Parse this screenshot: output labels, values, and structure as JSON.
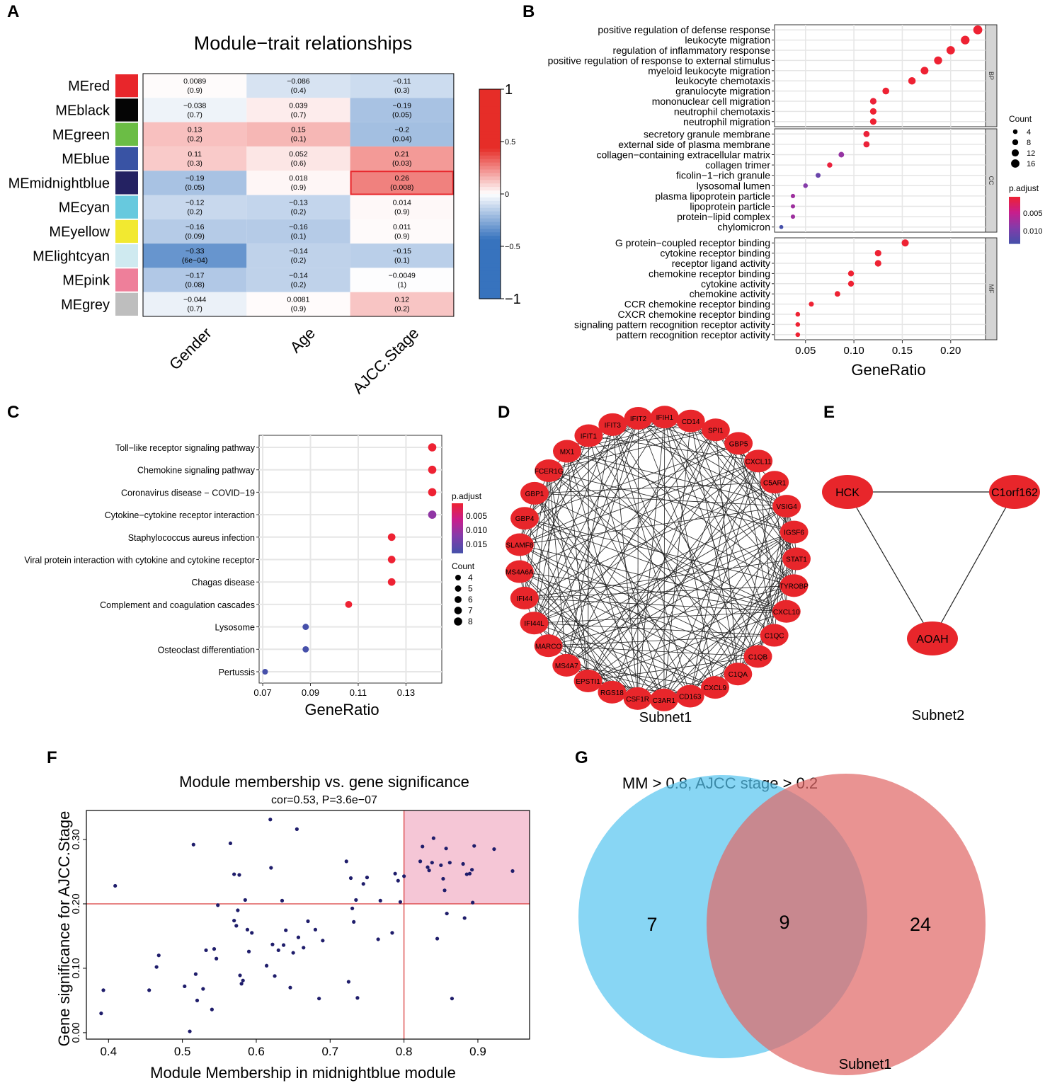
{
  "figure": {
    "panel_labels": [
      "A",
      "B",
      "C",
      "D",
      "E",
      "F",
      "G"
    ]
  },
  "chart_data": [
    {
      "panel": "A",
      "type": "heatmap",
      "title": "Module−trait relationships",
      "rows": [
        "MEred",
        "MEblack",
        "MEgreen",
        "MEblue",
        "MEmidnightblue",
        "MEcyan",
        "MEyellow",
        "MElightcyan",
        "MEpink",
        "MEgrey"
      ],
      "row_colors": [
        "#e8262b",
        "#050505",
        "#6bbd45",
        "#3953a4",
        "#242262",
        "#67c9de",
        "#f2e930",
        "#cfeaf0",
        "#ee7f9a",
        "#bebebe"
      ],
      "columns": [
        "Gender",
        "Age",
        "AJCC.Stage"
      ],
      "values": [
        [
          0.0089,
          -0.086,
          -0.11
        ],
        [
          -0.038,
          0.039,
          -0.19
        ],
        [
          0.13,
          0.15,
          -0.2
        ],
        [
          0.11,
          0.052,
          0.21
        ],
        [
          -0.19,
          0.018,
          0.26
        ],
        [
          -0.12,
          -0.13,
          0.014
        ],
        [
          -0.16,
          -0.16,
          0.011
        ],
        [
          -0.33,
          -0.14,
          -0.15
        ],
        [
          -0.17,
          -0.14,
          -0.0049
        ],
        [
          -0.044,
          0.0081,
          0.12
        ]
      ],
      "cell_labels": [
        [
          "0.0089",
          "−0.086",
          "−0.11"
        ],
        [
          "−0.038",
          "0.039",
          "−0.19"
        ],
        [
          "0.13",
          "0.15",
          "−0.2"
        ],
        [
          "0.11",
          "0.052",
          "0.21"
        ],
        [
          "−0.19",
          "0.018",
          "0.26"
        ],
        [
          "−0.12",
          "−0.13",
          "0.014"
        ],
        [
          "−0.16",
          "−0.16",
          "0.011"
        ],
        [
          "−0.33",
          "−0.14",
          "−0.15"
        ],
        [
          "−0.17",
          "−0.14",
          "−0.0049"
        ],
        [
          "−0.044",
          "0.0081",
          "0.12"
        ]
      ],
      "pvalues": [
        [
          "(0.9)",
          "(0.4)",
          "(0.3)"
        ],
        [
          "(0.7)",
          "(0.7)",
          "(0.05)"
        ],
        [
          "(0.2)",
          "(0.1)",
          "(0.04)"
        ],
        [
          "(0.3)",
          "(0.6)",
          "(0.03)"
        ],
        [
          "(0.05)",
          "(0.9)",
          "(0.008)"
        ],
        [
          "(0.2)",
          "(0.2)",
          "(0.9)"
        ],
        [
          "(0.09)",
          "(0.1)",
          "(0.9)"
        ],
        [
          "(6e−04)",
          "(0.2)",
          "(0.1)"
        ],
        [
          "(0.08)",
          "(0.2)",
          "(1)"
        ],
        [
          "(0.7)",
          "(0.9)",
          "(0.2)"
        ]
      ],
      "highlight_cell": {
        "row": "MEmidnightblue",
        "column": "AJCC.Stage"
      },
      "colorbar": {
        "range": [
          -1,
          1
        ],
        "ticks": [
          "1",
          "0.5",
          "0",
          "−0.5",
          "−1"
        ],
        "tick_values": [
          1,
          0.5,
          0,
          -0.5,
          -1
        ]
      }
    },
    {
      "panel": "B",
      "type": "scatter",
      "subtype": "dotplot",
      "xlabel": "GeneRatio",
      "xlim": [
        0.018,
        0.236
      ],
      "xticks": [
        0.05,
        0.1,
        0.15,
        0.2
      ],
      "xtick_labels": [
        "0.05",
        "0.10",
        "0.15",
        "0.20"
      ],
      "facets": [
        {
          "name": "BP",
          "terms": [
            {
              "term": "positive regulation of defense response",
              "x": 0.228,
              "count": 18,
              "padj": 0.0005
            },
            {
              "term": "leukocyte migration",
              "x": 0.215,
              "count": 17,
              "padj": 0.0005
            },
            {
              "term": "regulation of inflammatory response",
              "x": 0.2,
              "count": 16,
              "padj": 0.0005
            },
            {
              "term": "positive regulation of response to external stimulus",
              "x": 0.187,
              "count": 15,
              "padj": 0.0005
            },
            {
              "term": "myeloid leukocyte migration",
              "x": 0.173,
              "count": 14,
              "padj": 0.0005
            },
            {
              "term": "leukocyte chemotaxis",
              "x": 0.16,
              "count": 13,
              "padj": 0.0005
            },
            {
              "term": "granulocyte migration",
              "x": 0.133,
              "count": 11,
              "padj": 0.0005
            },
            {
              "term": "mononuclear cell migration",
              "x": 0.12,
              "count": 10,
              "padj": 0.0008
            },
            {
              "term": "neutrophil chemotaxis",
              "x": 0.12,
              "count": 10,
              "padj": 0.0005
            },
            {
              "term": "neutrophil migration",
              "x": 0.12,
              "count": 10,
              "padj": 0.0005
            }
          ]
        },
        {
          "name": "CC",
          "terms": [
            {
              "term": "secretory granule membrane",
              "x": 0.113,
              "count": 9,
              "padj": 0.0008
            },
            {
              "term": "external side of plasma membrane",
              "x": 0.113,
              "count": 9,
              "padj": 0.0008
            },
            {
              "term": "collagen−containing extracellular matrix",
              "x": 0.087,
              "count": 7,
              "padj": 0.008
            },
            {
              "term": "collagen trimer",
              "x": 0.075,
              "count": 6,
              "padj": 0.001
            },
            {
              "term": "ficolin−1−rich granule",
              "x": 0.063,
              "count": 5,
              "padj": 0.011
            },
            {
              "term": "lysosomal lumen",
              "x": 0.05,
              "count": 4,
              "padj": 0.009
            },
            {
              "term": "plasma lipoprotein particle",
              "x": 0.037,
              "count": 3,
              "padj": 0.0075
            },
            {
              "term": "lipoprotein particle",
              "x": 0.037,
              "count": 3,
              "padj": 0.0075
            },
            {
              "term": "protein−lipid complex",
              "x": 0.037,
              "count": 3,
              "padj": 0.0075
            },
            {
              "term": "chylomicron",
              "x": 0.025,
              "count": 2,
              "padj": 0.0135
            }
          ]
        },
        {
          "name": "MF",
          "terms": [
            {
              "term": "G protein−coupled receptor binding",
              "x": 0.153,
              "count": 12,
              "padj": 0.0005
            },
            {
              "term": "cytokine receptor binding",
              "x": 0.125,
              "count": 10,
              "padj": 0.0005
            },
            {
              "term": "receptor ligand activity",
              "x": 0.125,
              "count": 10,
              "padj": 0.0005
            },
            {
              "term": "chemokine receptor binding",
              "x": 0.097,
              "count": 8,
              "padj": 0.0005
            },
            {
              "term": "cytokine activity",
              "x": 0.097,
              "count": 8,
              "padj": 0.0005
            },
            {
              "term": "chemokine activity",
              "x": 0.083,
              "count": 7,
              "padj": 0.0005
            },
            {
              "term": "CCR chemokine receptor binding",
              "x": 0.056,
              "count": 5,
              "padj": 0.0005
            },
            {
              "term": "CXCR chemokine receptor binding",
              "x": 0.042,
              "count": 4,
              "padj": 0.0005
            },
            {
              "term": "signaling pattern recognition receptor activity",
              "x": 0.042,
              "count": 4,
              "padj": 0.0005
            },
            {
              "term": "pattern recognition receptor activity",
              "x": 0.042,
              "count": 4,
              "padj": 0.0005
            }
          ]
        }
      ],
      "legend_count": {
        "title": "Count",
        "values": [
          4,
          8,
          12,
          16
        ]
      },
      "legend_padj": {
        "title": "p.adjust",
        "ticks": [
          "0.005",
          "0.010"
        ],
        "tick_values": [
          0.005,
          0.01
        ],
        "range": [
          0.0005,
          0.0135
        ]
      }
    },
    {
      "panel": "C",
      "type": "scatter",
      "subtype": "dotplot",
      "xlabel": "GeneRatio",
      "xlim": [
        0.0685,
        0.145
      ],
      "xticks": [
        0.07,
        0.09,
        0.11,
        0.13
      ],
      "xtick_labels": [
        "0.07",
        "0.09",
        "0.11",
        "0.13"
      ],
      "terms": [
        {
          "term": "Toll−like receptor signaling pathway",
          "x": 0.141,
          "count": 8,
          "padj": 0.0005
        },
        {
          "term": "Chemokine signaling pathway",
          "x": 0.141,
          "count": 8,
          "padj": 0.0005
        },
        {
          "term": "Coronavirus disease − COVID−19",
          "x": 0.141,
          "count": 8,
          "padj": 0.0005
        },
        {
          "term": "Cytokine−cytokine receptor interaction",
          "x": 0.141,
          "count": 8,
          "padj": 0.011
        },
        {
          "term": "Staphylococcus aureus infection",
          "x": 0.124,
          "count": 7,
          "padj": 0.0005
        },
        {
          "term": "Viral protein interaction with cytokine and cytokine receptor",
          "x": 0.124,
          "count": 7,
          "padj": 0.0005
        },
        {
          "term": "Chagas disease",
          "x": 0.124,
          "count": 7,
          "padj": 0.0005
        },
        {
          "term": "Complement and coagulation cascades",
          "x": 0.106,
          "count": 6,
          "padj": 0.0005
        },
        {
          "term": "Lysosome",
          "x": 0.088,
          "count": 5,
          "padj": 0.018
        },
        {
          "term": "Osteoclast differentiation",
          "x": 0.088,
          "count": 5,
          "padj": 0.018
        },
        {
          "term": "Pertussis",
          "x": 0.071,
          "count": 4,
          "padj": 0.018
        }
      ],
      "legend_padj": {
        "title": "p.adjust",
        "ticks": [
          "0.005",
          "0.010",
          "0.015"
        ],
        "tick_values": [
          0.005,
          0.01,
          0.015
        ],
        "range": [
          0.0005,
          0.018
        ]
      },
      "legend_count": {
        "title": "Count",
        "values": [
          4,
          5,
          6,
          7,
          8
        ]
      }
    },
    {
      "panel": "D",
      "type": "network",
      "caption": "Subnet1",
      "nodes": [
        "IFIH1",
        "CD14",
        "SPI1",
        "GBP5",
        "CXCL11",
        "C5AR1",
        "VSIG4",
        "IGSF6",
        "STAT1",
        "TYROBP",
        "CXCL10",
        "C1QC",
        "C1QB",
        "C1QA",
        "CXCL9",
        "CD163",
        "C3AR1",
        "CSF1R",
        "RGS18",
        "EPSTI1",
        "MS4A7",
        "MARCO",
        "IFI44L",
        "IFI44",
        "MS4A6A",
        "SLAMF8",
        "GBP4",
        "GBP1",
        "FCER1G",
        "MX1",
        "IFIT1",
        "IFIT3",
        "IFIT2"
      ],
      "node_color": "#e8262b"
    },
    {
      "panel": "E",
      "type": "network",
      "caption": "Subnet2",
      "nodes": [
        "HCK",
        "C1orf162",
        "AOAH"
      ],
      "edges": [
        [
          "HCK",
          "C1orf162"
        ],
        [
          "HCK",
          "AOAH"
        ],
        [
          "C1orf162",
          "AOAH"
        ]
      ],
      "node_color": "#e8262b"
    },
    {
      "panel": "F",
      "type": "scatter",
      "title": "Module membership vs. gene significance",
      "subtitle": "cor=0.53, P=3.6e−07",
      "xlabel": "Module Membership in midnightblue module",
      "ylabel": "Gene significance for AJCC.Stage",
      "xlim": [
        0.37,
        0.97
      ],
      "ylim": [
        -0.01,
        0.345
      ],
      "xticks": [
        0.4,
        0.5,
        0.6,
        0.7,
        0.8,
        0.9
      ],
      "xtick_labels": [
        "0.4",
        "0.5",
        "0.6",
        "0.7",
        "0.8",
        "0.9"
      ],
      "yticks": [
        0.0,
        0.1,
        0.2,
        0.3
      ],
      "ytick_labels": [
        "0.00",
        "0.10",
        "0.20",
        "0.30"
      ],
      "thresholds": {
        "x": 0.8,
        "y": 0.2
      },
      "highlight_region": {
        "x": [
          0.8,
          0.97
        ],
        "y": [
          0.2,
          0.345
        ],
        "color": "#f5c6d6"
      },
      "point_color": "#1f1d6b",
      "points": [
        [
          0.39,
          0.03
        ],
        [
          0.393,
          0.066
        ],
        [
          0.409,
          0.228
        ],
        [
          0.455,
          0.066
        ],
        [
          0.465,
          0.102
        ],
        [
          0.468,
          0.12
        ],
        [
          0.51,
          0.002
        ],
        [
          0.515,
          0.292
        ],
        [
          0.518,
          0.091
        ],
        [
          0.52,
          0.05
        ],
        [
          0.528,
          0.068
        ],
        [
          0.532,
          0.128
        ],
        [
          0.54,
          0.036
        ],
        [
          0.543,
          0.13
        ],
        [
          0.546,
          0.115
        ],
        [
          0.548,
          0.198
        ],
        [
          0.565,
          0.294
        ],
        [
          0.57,
          0.174
        ],
        [
          0.573,
          0.166
        ],
        [
          0.575,
          0.19
        ],
        [
          0.577,
          0.245
        ],
        [
          0.578,
          0.089
        ],
        [
          0.58,
          0.076
        ],
        [
          0.582,
          0.081
        ],
        [
          0.585,
          0.206
        ],
        [
          0.588,
          0.16
        ],
        [
          0.59,
          0.126
        ],
        [
          0.594,
          0.155
        ],
        [
          0.614,
          0.104
        ],
        [
          0.619,
          0.331
        ],
        [
          0.62,
          0.256
        ],
        [
          0.622,
          0.137
        ],
        [
          0.625,
          0.088
        ],
        [
          0.63,
          0.128
        ],
        [
          0.635,
          0.205
        ],
        [
          0.637,
          0.136
        ],
        [
          0.64,
          0.159
        ],
        [
          0.646,
          0.07
        ],
        [
          0.65,
          0.124
        ],
        [
          0.655,
          0.316
        ],
        [
          0.657,
          0.148
        ],
        [
          0.664,
          0.132
        ],
        [
          0.67,
          0.173
        ],
        [
          0.685,
          0.053
        ],
        [
          0.69,
          0.143
        ],
        [
          0.722,
          0.266
        ],
        [
          0.725,
          0.079
        ],
        [
          0.728,
          0.24
        ],
        [
          0.73,
          0.193
        ],
        [
          0.732,
          0.172
        ],
        [
          0.735,
          0.206
        ],
        [
          0.737,
          0.054
        ],
        [
          0.745,
          0.231
        ],
        [
          0.75,
          0.241
        ],
        [
          0.765,
          0.145
        ],
        [
          0.768,
          0.205
        ],
        [
          0.784,
          0.155
        ],
        [
          0.788,
          0.247
        ],
        [
          0.792,
          0.236
        ],
        [
          0.795,
          0.203
        ],
        [
          0.8,
          0.243
        ],
        [
          0.822,
          0.266
        ],
        [
          0.825,
          0.289
        ],
        [
          0.832,
          0.257
        ],
        [
          0.834,
          0.252
        ],
        [
          0.838,
          0.264
        ],
        [
          0.84,
          0.302
        ],
        [
          0.845,
          0.146
        ],
        [
          0.85,
          0.26
        ],
        [
          0.853,
          0.239
        ],
        [
          0.855,
          0.221
        ],
        [
          0.857,
          0.286
        ],
        [
          0.858,
          0.185
        ],
        [
          0.862,
          0.264
        ],
        [
          0.865,
          0.053
        ],
        [
          0.88,
          0.262
        ],
        [
          0.882,
          0.178
        ],
        [
          0.885,
          0.246
        ],
        [
          0.889,
          0.247
        ],
        [
          0.892,
          0.253
        ],
        [
          0.893,
          0.202
        ],
        [
          0.895,
          0.29
        ],
        [
          0.922,
          0.285
        ],
        [
          0.947,
          0.251
        ],
        [
          0.57,
          0.246
        ],
        [
          0.503,
          0.072
        ],
        [
          0.68,
          0.16
        ]
      ]
    },
    {
      "panel": "G",
      "type": "venn",
      "title": "MM > 0.8, AJCC stage > 0.2",
      "sets": [
        {
          "name": "",
          "color": "#56c5f0"
        },
        {
          "name": "Subnet1",
          "color": "#e06a68"
        }
      ],
      "only_left": "7",
      "intersection": "9",
      "only_right": "24"
    }
  ]
}
